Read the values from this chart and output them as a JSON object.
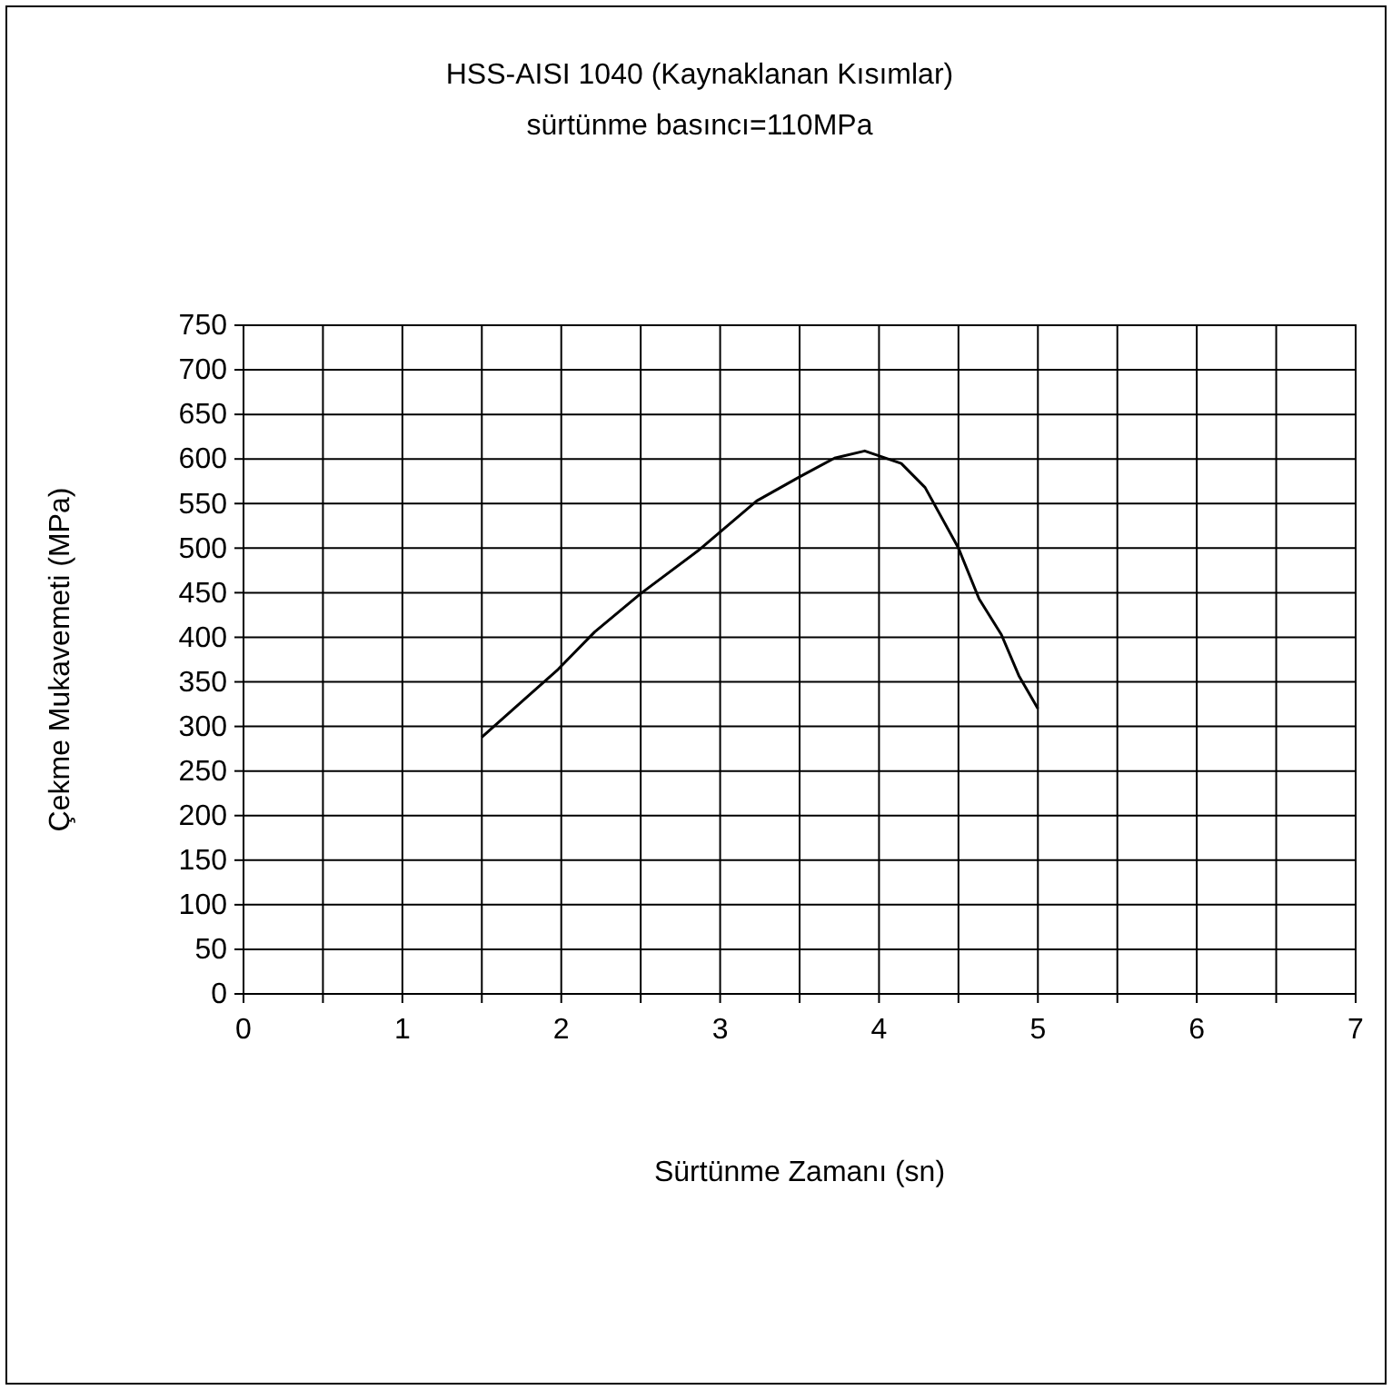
{
  "chart_data": {
    "type": "line",
    "title": "HSS-AISI 1040 (Kaynaklanan Kısımlar)",
    "subtitle": "sürtünme basıncı=110MPa",
    "xlabel": "Sürtünme Zamanı (sn)",
    "ylabel": "Çekme Mukavemeti (MPa)",
    "x": [
      1.5,
      1.98,
      2.21,
      2.5,
      2.86,
      3.23,
      3.5,
      3.72,
      3.91,
      4.14,
      4.29,
      4.5,
      4.63,
      4.77,
      4.88,
      5.0
    ],
    "series": [
      {
        "color": "#000000",
        "values": [
          288,
          364,
          406,
          449,
          497,
          553,
          580,
          601,
          609,
          595,
          568,
          500,
          443,
          403,
          357,
          320
        ]
      }
    ],
    "xlim": [
      0,
      7
    ],
    "xticks": [
      0,
      {
        "value": 0.5,
        "label": null
      },
      1,
      {
        "value": 1.5,
        "label": null
      },
      2,
      {
        "value": 2.5,
        "label": null
      },
      3,
      {
        "value": 3.5,
        "label": null
      },
      4,
      {
        "value": 4.5,
        "label": null
      },
      5,
      {
        "value": 5.5,
        "label": null
      },
      6,
      {
        "value": 6.5,
        "label": null
      },
      7
    ],
    "ylim": [
      0,
      750
    ],
    "yticks": [
      0,
      50,
      100,
      150,
      200,
      250,
      300,
      350,
      400,
      450,
      500,
      550,
      600,
      650,
      700,
      750
    ],
    "grid": true,
    "marker": "none",
    "line_style": "solid"
  }
}
